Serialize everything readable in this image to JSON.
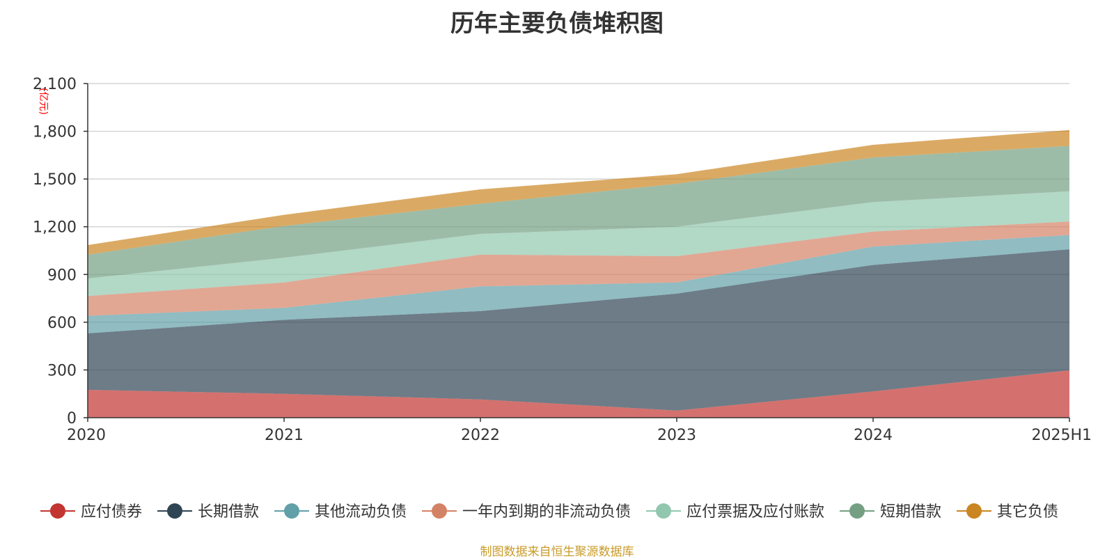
{
  "chart_data": {
    "type": "area",
    "title": "历年主要负债堆积图",
    "unit_label": "(亿元)",
    "categories": [
      "2020",
      "2021",
      "2022",
      "2023",
      "2024",
      "2025H1"
    ],
    "ylim": [
      0,
      2100
    ],
    "yticks": [
      "0",
      "300",
      "600",
      "900",
      "1,200",
      "1,500",
      "1,800",
      "2,100"
    ],
    "stacked": true,
    "grid": true,
    "legend_position": "bottom",
    "series": [
      {
        "name": "应付债券",
        "color": "#c23531",
        "values": [
          175,
          150,
          115,
          45,
          165,
          298
        ]
      },
      {
        "name": "长期借款",
        "color": "#2f4554",
        "values": [
          355,
          465,
          555,
          735,
          795,
          760
        ]
      },
      {
        "name": "其他流动负债",
        "color": "#61a0a8",
        "values": [
          110,
          75,
          155,
          70,
          115,
          90
        ]
      },
      {
        "name": "一年内到期的非流动负债",
        "color": "#d48265",
        "values": [
          125,
          160,
          200,
          165,
          95,
          85
        ]
      },
      {
        "name": "应付票据及应付账款",
        "color": "#91c7ae",
        "values": [
          110,
          155,
          130,
          185,
          185,
          190
        ]
      },
      {
        "name": "短期借款",
        "color": "#749f83",
        "values": [
          150,
          200,
          190,
          270,
          280,
          285
        ]
      },
      {
        "name": "其它负债",
        "color": "#ca8622",
        "values": [
          60,
          70,
          90,
          60,
          80,
          100
        ]
      }
    ]
  },
  "source_note": "制图数据来自恒生聚源数据库"
}
